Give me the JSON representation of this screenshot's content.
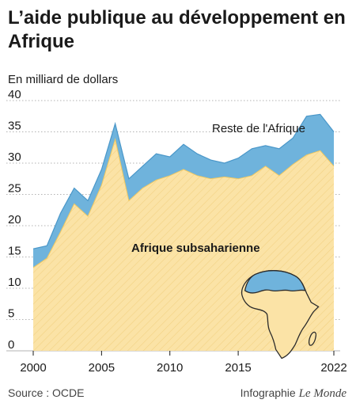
{
  "title": "L’aide publique au développement en Afrique",
  "unit_label": "En milliard de dollars",
  "source": "Source : OCDE",
  "credit_prefix": "Infographie ",
  "credit_brand": "Le Monde",
  "colors": {
    "total_fill": "#6fb3dc",
    "total_stroke": "#4a97c9",
    "ssa_fill": "#fbe3a6",
    "ssa_stroke": "#f0c860",
    "hatch": "#f2d283",
    "grid": "#9a9a9a",
    "text": "#1a1a1a",
    "africa_fill": "#fbe3a6",
    "africa_north_fill": "#6fb3dc",
    "africa_stroke": "#2b2b2b"
  },
  "chart_data": {
    "type": "area",
    "title": "L’aide publique au développement en Afrique",
    "ylabel": "En milliard de dollars",
    "xlabel": "",
    "x": [
      2000,
      2001,
      2002,
      2003,
      2004,
      2005,
      2006,
      2007,
      2008,
      2009,
      2010,
      2011,
      2012,
      2013,
      2014,
      2015,
      2016,
      2017,
      2018,
      2019,
      2020,
      2021,
      2022
    ],
    "xticks": [
      2000,
      2005,
      2010,
      2015,
      2022
    ],
    "yticks": [
      0,
      5,
      10,
      15,
      20,
      25,
      30,
      35,
      40
    ],
    "ylim": [
      0,
      40
    ],
    "xlim": [
      2000,
      2022
    ],
    "grid": true,
    "series": [
      {
        "name": "Reste de l'Afrique",
        "stacked_total": [
          16.3,
          16.8,
          22.0,
          26.0,
          24.0,
          29.0,
          36.3,
          27.5,
          29.5,
          31.5,
          31.0,
          33.0,
          31.5,
          30.5,
          30.0,
          30.8,
          32.3,
          32.8,
          32.3,
          34.0,
          37.5,
          37.8,
          35.0
        ]
      },
      {
        "name": "Afrique subsaharienne",
        "values": [
          13.3,
          14.8,
          19.0,
          23.5,
          21.5,
          26.5,
          33.8,
          24.0,
          26.0,
          27.3,
          28.0,
          29.0,
          28.0,
          27.5,
          27.8,
          27.5,
          28.0,
          29.5,
          28.0,
          29.8,
          31.3,
          32.0,
          29.5
        ]
      }
    ],
    "annotations": [
      "Reste de l'Afrique",
      "Afrique subsaharienne"
    ]
  }
}
